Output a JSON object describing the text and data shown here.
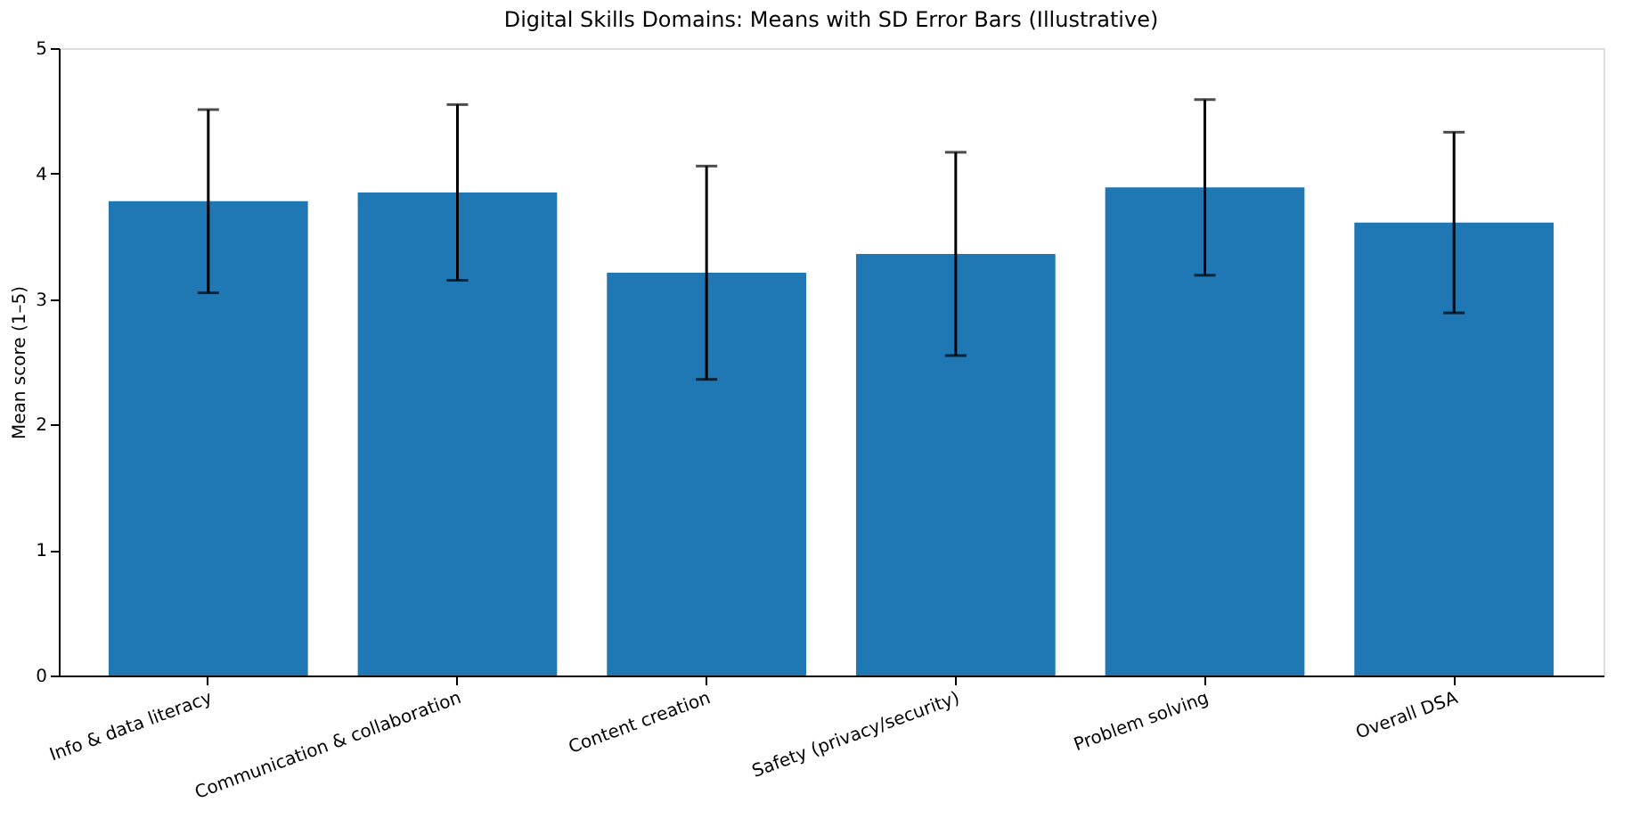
{
  "chart_data": {
    "type": "bar",
    "title": "Digital Skills Domains: Means with SD Error Bars (Illustrative)",
    "ylabel": "Mean score (1–5)",
    "categories": [
      "Info & data literacy",
      "Communication & collaboration",
      "Content creation",
      "Safety (privacy/security)",
      "Problem solving",
      "Overall DSA"
    ],
    "values": [
      3.78,
      3.85,
      3.21,
      3.36,
      3.89,
      3.61
    ],
    "errors": [
      0.73,
      0.7,
      0.85,
      0.81,
      0.7,
      0.72
    ],
    "color": "#1f77b4",
    "ylim": [
      0,
      5
    ],
    "yticks": [
      0,
      1,
      2,
      3,
      4,
      5
    ],
    "grid": false
  }
}
